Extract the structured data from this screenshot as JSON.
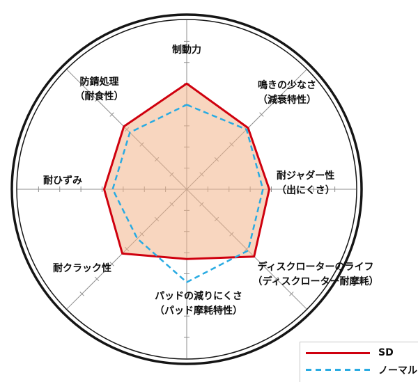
{
  "chart_data": {
    "type": "radar",
    "title": "",
    "scale": {
      "min": 0,
      "max": 8,
      "tick_step": 1
    },
    "grid": "spokes-with-ticks",
    "legend_position": "bottom-right",
    "axes": [
      {
        "name": "制動力",
        "lines": [
          "制動力"
        ]
      },
      {
        "name": "鳴きの少なさ（減衰特性）",
        "lines": [
          "鳴きの少なさ",
          "（減衰特性）"
        ]
      },
      {
        "name": "耐ジャダー性（出にくさ）",
        "lines": [
          "耐ジャダー性",
          "（出にくさ）"
        ]
      },
      {
        "name": "ディスクローターのライフ（ディスクローター耐摩耗）",
        "lines": [
          "ディスクローターのライフ",
          "（ディスクローター耐摩耗）"
        ]
      },
      {
        "name": "パッドの減りにくさ（パッド摩耗特性）",
        "lines": [
          "パッドの減りにくさ",
          "（パッド摩耗特性）"
        ]
      },
      {
        "name": "耐クラック性",
        "lines": [
          "耐クラック性"
        ]
      },
      {
        "name": "耐ひずみ",
        "lines": [
          "耐ひずみ"
        ]
      },
      {
        "name": "防錆処理（耐食性）",
        "lines": [
          "防錆処理",
          "（耐食性）"
        ]
      }
    ],
    "series": [
      {
        "name": "SD",
        "color": "#cf000e",
        "style": "solid",
        "fill": "rgba(243,181,138,0.55)",
        "values": [
          5.0,
          4.1,
          3.9,
          4.5,
          3.3,
          4.3,
          3.9,
          4.2
        ]
      },
      {
        "name": "ノーマル",
        "color": "#29abe2",
        "style": "dashed",
        "fill": "none",
        "values": [
          4.0,
          4.0,
          3.6,
          4.1,
          4.4,
          3.3,
          3.5,
          3.8
        ]
      }
    ]
  },
  "colors": {
    "circle_border": "#151515",
    "spokes": "#8e8e8e",
    "sd_red": "#cf000e",
    "normal_blue": "#29abe2"
  }
}
